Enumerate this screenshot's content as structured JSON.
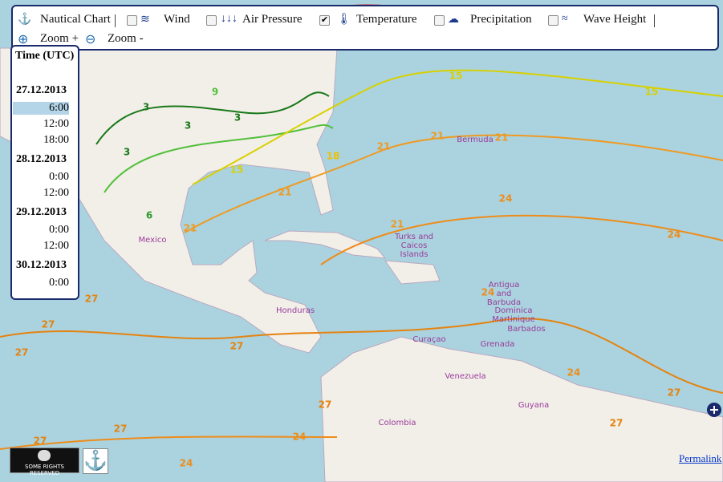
{
  "toolbar": {
    "items": [
      {
        "label": "Nautical Chart"
      },
      {
        "label": "Wind",
        "checked": false
      },
      {
        "label": "Air Pressure",
        "checked": false
      },
      {
        "label": "Temperature",
        "checked": true
      },
      {
        "label": "Precipitation",
        "checked": false
      },
      {
        "label": "Wave Height",
        "checked": false
      }
    ],
    "zoom_in": "Zoom +",
    "zoom_out": "Zoom -"
  },
  "time_panel": {
    "title": "Time (UTC)",
    "days": [
      {
        "date": "27.12.2013",
        "times": [
          {
            "label": "6:00",
            "selected": true
          },
          {
            "label": "12:00",
            "selected": false
          },
          {
            "label": "18:00",
            "selected": false
          }
        ]
      },
      {
        "date": "28.12.2013",
        "times": [
          {
            "label": "0:00",
            "selected": false
          },
          {
            "label": "12:00",
            "selected": false
          }
        ]
      },
      {
        "date": "29.12.2013",
        "times": [
          {
            "label": "0:00",
            "selected": false
          },
          {
            "label": "12:00",
            "selected": false
          }
        ]
      },
      {
        "date": "30.12.2013",
        "times": [
          {
            "label": "0:00",
            "selected": false
          }
        ]
      }
    ]
  },
  "map": {
    "places": [
      "Bermuda",
      "Turks and",
      "Caicos",
      "Islands",
      "Antigua",
      "and",
      "Barbuda",
      "Dominica",
      "Martinique",
      "Barbados",
      "Grenada",
      "Venezuela",
      "Guyana",
      "Honduras",
      "Mexico",
      "Colombia",
      "Curaçao"
    ],
    "isotherm_labels": [
      {
        "value": 21,
        "color": "#ee9a22"
      },
      {
        "value": 21,
        "color": "#ee9a22"
      },
      {
        "value": 21,
        "color": "#ee9a22"
      },
      {
        "value": 21,
        "color": "#ee9a22"
      },
      {
        "value": 24,
        "color": "#ee8c1a"
      },
      {
        "value": 21,
        "color": "#ee9a22"
      },
      {
        "value": 21,
        "color": "#ee9a22"
      },
      {
        "value": 24,
        "color": "#ee8c1a"
      },
      {
        "value": 24,
        "color": "#ee8c1a"
      },
      {
        "value": 24,
        "color": "#ee8c1a"
      },
      {
        "value": 24,
        "color": "#ee8c1a"
      },
      {
        "value": 24,
        "color": "#ee8c1a"
      },
      {
        "value": 27,
        "color": "#e58310"
      },
      {
        "value": 27,
        "color": "#e58310"
      },
      {
        "value": 27,
        "color": "#e58310"
      },
      {
        "value": 27,
        "color": "#e58310"
      },
      {
        "value": 27,
        "color": "#e58310"
      },
      {
        "value": 27,
        "color": "#e58310"
      },
      {
        "value": 27,
        "color": "#e58310"
      },
      {
        "value": 27,
        "color": "#e58310"
      },
      {
        "value": 27,
        "color": "#e58310"
      },
      {
        "value": 15,
        "color": "#d8d000"
      },
      {
        "value": 15,
        "color": "#d8d000"
      },
      {
        "value": 15,
        "color": "#d8d000"
      },
      {
        "value": 18,
        "color": "#f0c000"
      },
      {
        "value": 3,
        "color": "#187818"
      },
      {
        "value": 3,
        "color": "#187818"
      },
      {
        "value": 3,
        "color": "#187818"
      },
      {
        "value": 3,
        "color": "#187818"
      },
      {
        "value": 6,
        "color": "#2e9a2e"
      },
      {
        "value": 9,
        "color": "#52c03a"
      }
    ]
  },
  "footer": {
    "license": "SOME RIGHTS RESERVED",
    "permalink": "Permalink"
  }
}
